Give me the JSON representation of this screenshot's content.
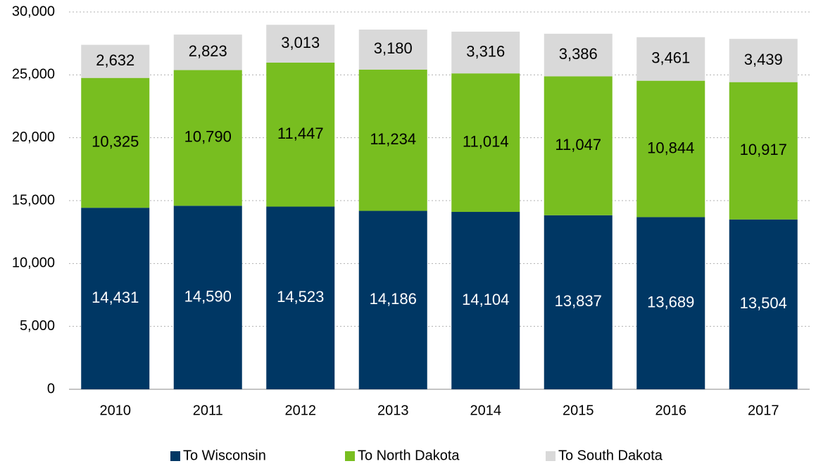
{
  "chart_data": {
    "type": "stacked-bar",
    "categories": [
      "2010",
      "2011",
      "2012",
      "2013",
      "2014",
      "2015",
      "2016",
      "2017"
    ],
    "series": [
      {
        "name": "To Wisconsin",
        "color": "#003764",
        "values": [
          14431,
          14590,
          14523,
          14186,
          14104,
          13837,
          13689,
          13504
        ],
        "value_labels": [
          "14,431",
          "14,590",
          "14,523",
          "14,186",
          "14,104",
          "13,837",
          "13,689",
          "13,504"
        ]
      },
      {
        "name": "To North Dakota",
        "color": "#78be20",
        "values": [
          10325,
          10790,
          11447,
          11234,
          11014,
          11047,
          10844,
          10917
        ],
        "value_labels": [
          "10,325",
          "10,790",
          "11,447",
          "11,234",
          "11,014",
          "11,047",
          "10,844",
          "10,917"
        ]
      },
      {
        "name": "To South Dakota",
        "color": "#d9d9d9",
        "values": [
          2632,
          2823,
          3013,
          3180,
          3316,
          3386,
          3461,
          3439
        ],
        "value_labels": [
          "2,632",
          "2,823",
          "3,013",
          "3,180",
          "3,316",
          "3,386",
          "3,461",
          "3,439"
        ]
      }
    ],
    "ylim": [
      0,
      30000
    ],
    "yticks": [
      0,
      {
        "value": 5000,
        "label": "5,000"
      },
      {
        "value": 10000,
        "label": "10,000"
      },
      {
        "value": 15000,
        "label": "15,000"
      },
      {
        "value": 20000,
        "label": "20,000"
      },
      {
        "value": 25000,
        "label": "25,000"
      },
      {
        "value": 30000,
        "label": "30,000"
      }
    ],
    "grid": true,
    "legend": "bottom"
  }
}
